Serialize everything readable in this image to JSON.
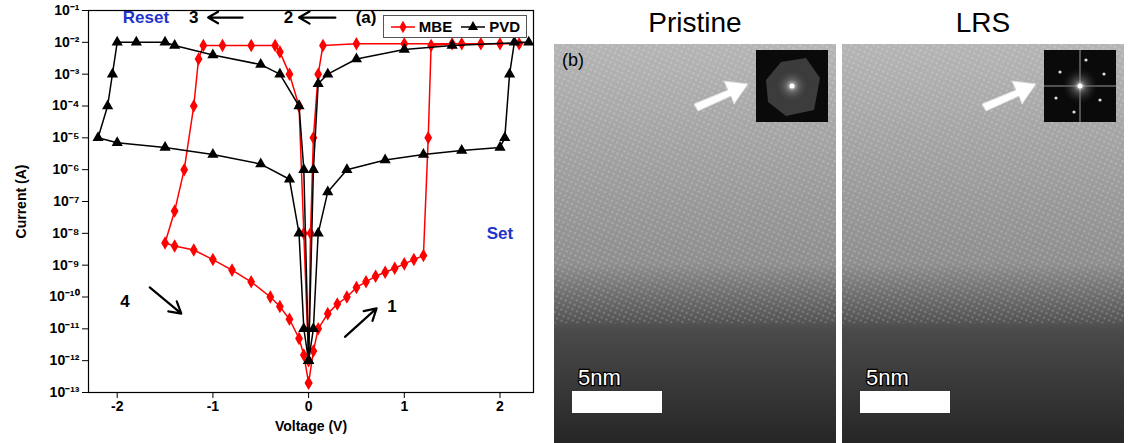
{
  "chart_data": {
    "type": "line",
    "xlabel": "Voltage (V)",
    "ylabel": "Current (A)",
    "xlim": [
      -2.3,
      2.35
    ],
    "xticks": [
      -2,
      -1,
      0,
      1,
      2
    ],
    "ylim": [
      1e-13,
      0.1
    ],
    "yticks": [
      {
        "value": 1e-13,
        "label": "10⁻¹³"
      },
      {
        "value": 1e-12,
        "label": "10⁻¹²"
      },
      {
        "value": 1e-11,
        "label": "10⁻¹¹"
      },
      {
        "value": 1e-10,
        "label": "10⁻¹⁰"
      },
      {
        "value": 1e-09,
        "label": "10⁻⁹"
      },
      {
        "value": 1e-08,
        "label": "10⁻⁸"
      },
      {
        "value": 1e-07,
        "label": "10⁻⁷"
      },
      {
        "value": 1e-06,
        "label": "10⁻⁶"
      },
      {
        "value": 1e-05,
        "label": "10⁻⁵"
      },
      {
        "value": 0.0001,
        "label": "10⁻⁴"
      },
      {
        "value": 0.001,
        "label": "10⁻³"
      },
      {
        "value": 0.01,
        "label": "10⁻²"
      },
      {
        "value": 0.1,
        "label": "10⁻¹"
      }
    ],
    "log": "y",
    "grid": false,
    "legend": "top-right",
    "series": [
      {
        "name": "MBE",
        "color": "#ff0000",
        "marker": "diamond",
        "x": [
          0,
          0.05,
          0.1,
          0.2,
          0.3,
          0.4,
          0.5,
          0.6,
          0.7,
          0.8,
          0.9,
          1.0,
          1.1,
          1.2,
          1.25,
          1.28,
          1.5,
          1.8,
          2.0,
          2.2,
          1.6,
          1.0,
          0.5,
          0.15,
          0.1,
          0.05,
          0.02,
          0,
          -0.05,
          -0.1,
          -0.2,
          -0.3,
          -0.35,
          -0.6,
          -0.9,
          -1.1,
          -1.15,
          -1.2,
          -1.3,
          -1.4,
          -1.5,
          -1.4,
          -1.2,
          -1.0,
          -0.8,
          -0.6,
          -0.4,
          -0.3,
          -0.2,
          -0.1,
          -0.05,
          0
        ],
        "values": [
          2e-13,
          2e-12,
          1e-11,
          3e-11,
          6e-11,
          1e-10,
          2e-10,
          3e-10,
          4.5e-10,
          6e-10,
          8e-10,
          1.1e-09,
          1.5e-09,
          2e-09,
          1e-05,
          0.008,
          0.009,
          0.009,
          0.009,
          0.009,
          0.009,
          0.009,
          0.009,
          0.008,
          0.001,
          1e-05,
          1e-08,
          1e-12,
          1e-08,
          0.0001,
          0.001,
          0.005,
          0.008,
          0.008,
          0.008,
          0.008,
          0.003,
          0.0001,
          1e-06,
          5e-08,
          5e-09,
          4e-09,
          3e-09,
          1.5e-09,
          7e-10,
          3e-10,
          1e-10,
          5e-11,
          2e-11,
          5e-12,
          1.5e-12,
          2e-13
        ]
      },
      {
        "name": "PVD",
        "color": "#000000",
        "marker": "triangle",
        "x": [
          0,
          0.05,
          0.1,
          0.2,
          0.4,
          0.8,
          1.2,
          1.6,
          2.0,
          2.05,
          2.1,
          2.15,
          2.3,
          1.5,
          1.0,
          0.5,
          0.2,
          0.1,
          0.05,
          0,
          -0.05,
          -0.1,
          -0.3,
          -0.5,
          -1.0,
          -1.4,
          -1.5,
          -1.8,
          -2.0,
          -2.05,
          -2.1,
          -2.2,
          -2.0,
          -1.5,
          -1.0,
          -0.5,
          -0.2,
          -0.1,
          -0.05,
          0
        ],
        "values": [
          1e-12,
          1e-11,
          1e-08,
          2e-07,
          1e-06,
          2e-06,
          3e-06,
          4e-06,
          5e-06,
          1e-05,
          0.001,
          0.01,
          0.01,
          0.008,
          0.006,
          0.003,
          0.001,
          0.0005,
          1e-06,
          1e-12,
          1e-06,
          0.0001,
          0.001,
          0.002,
          0.004,
          0.008,
          0.01,
          0.01,
          0.01,
          0.001,
          0.0001,
          1e-05,
          7e-06,
          5e-06,
          3e-06,
          1.5e-06,
          5e-07,
          1e-08,
          1e-11,
          1e-12
        ]
      }
    ],
    "annotations": [
      {
        "text": "Reset",
        "x": -1.7,
        "y": 0.06,
        "color": "#2233cc"
      },
      {
        "text": "3",
        "x": -1.2,
        "y": 0.06,
        "color": "#000000"
      },
      {
        "text": "2",
        "x": -0.21,
        "y": 0.06,
        "color": "#000000"
      },
      {
        "text": "(a)",
        "x": 0.6,
        "y": 0.06,
        "color": "#000000"
      },
      {
        "text": "Set",
        "x": 2.0,
        "y": 1e-08,
        "color": "#2233cc"
      },
      {
        "text": "1",
        "x": 0.87,
        "y": 5e-11,
        "color": "#000000"
      },
      {
        "text": "4",
        "x": -1.92,
        "y": 7e-11,
        "color": "#000000"
      }
    ],
    "arrows": [
      {
        "x1": -0.69,
        "y1": 0.06,
        "x2": -1.05,
        "y2": 0.06
      },
      {
        "x1": 0.28,
        "y1": 0.06,
        "x2": -0.1,
        "y2": 0.06
      },
      {
        "x1": 0.38,
        "y1": 5.6e-12,
        "x2": 0.71,
        "y2": 4.4e-11
      },
      {
        "x1": -1.66,
        "y1": 2e-10,
        "x2": -1.33,
        "y2": 3e-11
      }
    ]
  },
  "images": {
    "label": "(b)",
    "panels": [
      {
        "title": "Pristine",
        "scale_bar": "5nm"
      },
      {
        "title": "LRS",
        "scale_bar": "5nm"
      }
    ]
  }
}
